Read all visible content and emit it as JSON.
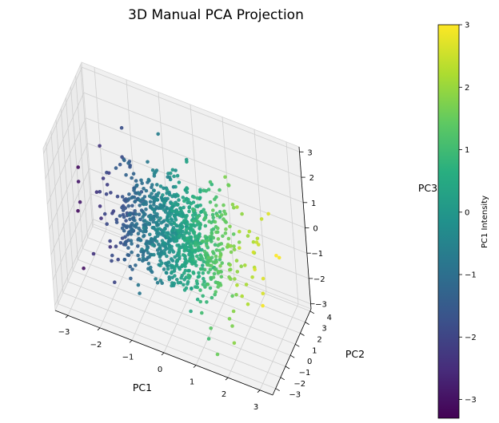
{
  "chart_data": {
    "type": "scatter",
    "title": "3D Manual PCA Projection",
    "xlabel": "PC1",
    "ylabel": "PC2",
    "zlabel": "PC3",
    "xlim": [
      -3.4,
      3.4
    ],
    "ylim": [
      -3.6,
      4.2
    ],
    "zlim": [
      -3.2,
      3.2
    ],
    "x_ticks": [
      "−3",
      "−2",
      "−1",
      "0",
      "1",
      "2",
      "3"
    ],
    "y_ticks": [
      "−3",
      "−2",
      "−1",
      "0",
      "1",
      "2",
      "3",
      "4"
    ],
    "z_ticks": [
      "−3",
      "−2",
      "−1",
      "0",
      "1",
      "2",
      "3"
    ],
    "x_tick_values": [
      -3,
      -2,
      -1,
      0,
      1,
      2,
      3
    ],
    "y_tick_values": [
      -3,
      -2,
      -1,
      0,
      1,
      2,
      3,
      4
    ],
    "z_tick_values": [
      -3,
      -2,
      -1,
      0,
      1,
      2,
      3
    ],
    "points": {
      "n": 1000,
      "distribution": "standard normal in PC1, PC2, PC3",
      "color_by": "PC1"
    },
    "colorbar": {
      "label": "PC1 Intensity",
      "colormap": "viridis",
      "range": [
        -3.3,
        3.0
      ],
      "ticks": [
        "−3",
        "−2",
        "−1",
        "0",
        "1",
        "2",
        "3"
      ],
      "tick_values": [
        -3,
        -2,
        -1,
        0,
        1,
        2,
        3
      ]
    },
    "grid": true
  }
}
